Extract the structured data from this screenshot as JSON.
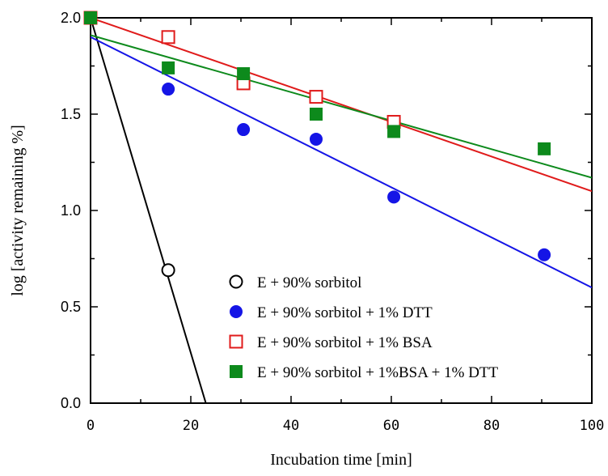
{
  "chart_data": {
    "type": "scatter",
    "xlabel": "Incubation time [min]",
    "ylabel": "log [activity remaining %]",
    "xlim": [
      0,
      100
    ],
    "ylim": [
      0,
      2.0
    ],
    "x_ticks": [
      0,
      20,
      40,
      60,
      80,
      100
    ],
    "y_ticks": [
      0.0,
      0.5,
      1.0,
      1.5,
      2.0
    ],
    "x_tick_labels": [
      "0",
      "20",
      "40",
      "60",
      "80",
      "100"
    ],
    "y_tick_labels": [
      "0.0",
      "0.5",
      "1.0",
      "1.5",
      "2.0"
    ],
    "grid": false,
    "legend_position": "bottom-center",
    "series": [
      {
        "name": "E + 90% sorbitol",
        "marker": "open-circle",
        "color": "#000000",
        "points": [
          [
            0,
            2.0
          ],
          [
            15.5,
            0.69
          ]
        ],
        "fit_line": [
          [
            0,
            2.0
          ],
          [
            23,
            0.0
          ]
        ]
      },
      {
        "name": "E + 90% sorbitol + 1% DTT",
        "marker": "filled-circle",
        "color": "#1515e6",
        "points": [
          [
            0,
            2.0
          ],
          [
            15.5,
            1.63
          ],
          [
            30.5,
            1.42
          ],
          [
            45,
            1.37
          ],
          [
            60.5,
            1.07
          ],
          [
            90.5,
            0.77
          ]
        ],
        "fit_line": [
          [
            0,
            1.9
          ],
          [
            100,
            0.6
          ]
        ]
      },
      {
        "name": "E + 90% sorbitol + 1% BSA",
        "marker": "open-square",
        "color": "#e01b1b",
        "points": [
          [
            0,
            2.0
          ],
          [
            15.5,
            1.9
          ],
          [
            30.5,
            1.66
          ],
          [
            45,
            1.59
          ],
          [
            60.5,
            1.46
          ]
        ],
        "fit_line": [
          [
            0,
            2.0
          ],
          [
            100,
            1.1
          ]
        ]
      },
      {
        "name": "E + 90% sorbitol + 1%BSA + 1% DTT",
        "marker": "filled-square",
        "color": "#0d8a1c",
        "points": [
          [
            0,
            2.0
          ],
          [
            15.5,
            1.74
          ],
          [
            30.5,
            1.71
          ],
          [
            45,
            1.5
          ],
          [
            60.5,
            1.41
          ],
          [
            90.5,
            1.32
          ]
        ],
        "fit_line": [
          [
            0,
            1.91
          ],
          [
            100,
            1.17
          ]
        ]
      }
    ]
  }
}
